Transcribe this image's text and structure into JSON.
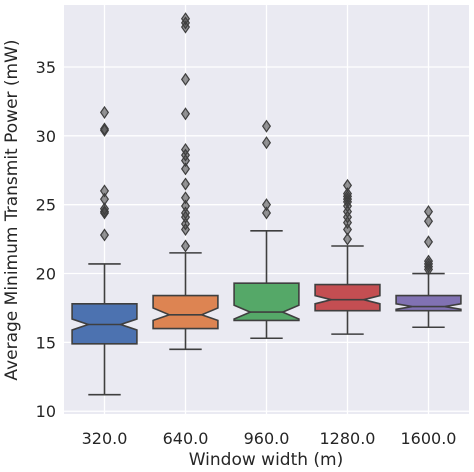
{
  "chart_data": {
    "type": "box",
    "notched": true,
    "xlabel": "Window width (m)",
    "ylabel": "Average Minimum Transmit Power (mW)",
    "categories": [
      "320.0",
      "640.0",
      "960.0",
      "1280.0",
      "1600.0"
    ],
    "ylim": [
      9.8,
      39.5
    ],
    "yticks": [
      10,
      15,
      20,
      25,
      30,
      35
    ],
    "grid": true,
    "background": "#eaeaf2",
    "boxes": [
      {
        "category": "320.0",
        "color": "#4c72b0",
        "q1": 14.9,
        "median": 16.3,
        "q3": 17.8,
        "notch_low": 15.9,
        "notch_high": 16.7,
        "whisker_low": 11.2,
        "whisker_high": 20.7,
        "outliers": [
          31.7,
          30.5,
          30.4,
          26.0,
          25.4,
          24.7,
          24.5,
          24.4,
          22.8
        ]
      },
      {
        "category": "640.0",
        "color": "#dd8452",
        "q1": 16.0,
        "median": 17.0,
        "q3": 18.4,
        "notch_low": 16.6,
        "notch_high": 17.5,
        "whisker_low": 14.5,
        "whisker_high": 21.5,
        "outliers": [
          38.5,
          38.2,
          37.9,
          34.1,
          31.6,
          29.0,
          28.6,
          28.2,
          27.6,
          26.5,
          25.5,
          24.9,
          24.4,
          24.1,
          23.6,
          23.2,
          22.0
        ]
      },
      {
        "category": "960.0",
        "color": "#55a868",
        "q1": 16.6,
        "median": 17.2,
        "q3": 19.3,
        "notch_low": 16.7,
        "notch_high": 17.7,
        "whisker_low": 15.3,
        "whisker_high": 23.1,
        "outliers": [
          30.7,
          29.5,
          25.0,
          24.4
        ]
      },
      {
        "category": "1280.0",
        "color": "#c44e52",
        "q1": 17.3,
        "median": 18.1,
        "q3": 19.2,
        "notch_low": 17.8,
        "notch_high": 18.4,
        "whisker_low": 15.6,
        "whisker_high": 22.0,
        "outliers": [
          26.4,
          25.8,
          25.6,
          25.4,
          25.2,
          24.9,
          24.5,
          24.1,
          23.7,
          23.2,
          22.5
        ]
      },
      {
        "category": "1600.0",
        "color": "#8172b3",
        "q1": 17.3,
        "median": 17.6,
        "q3": 18.4,
        "notch_low": 17.4,
        "notch_high": 17.8,
        "whisker_low": 16.1,
        "whisker_high": 20.0,
        "outliers": [
          24.5,
          23.8,
          22.3,
          20.9,
          20.7,
          20.5,
          20.3
        ]
      }
    ]
  }
}
